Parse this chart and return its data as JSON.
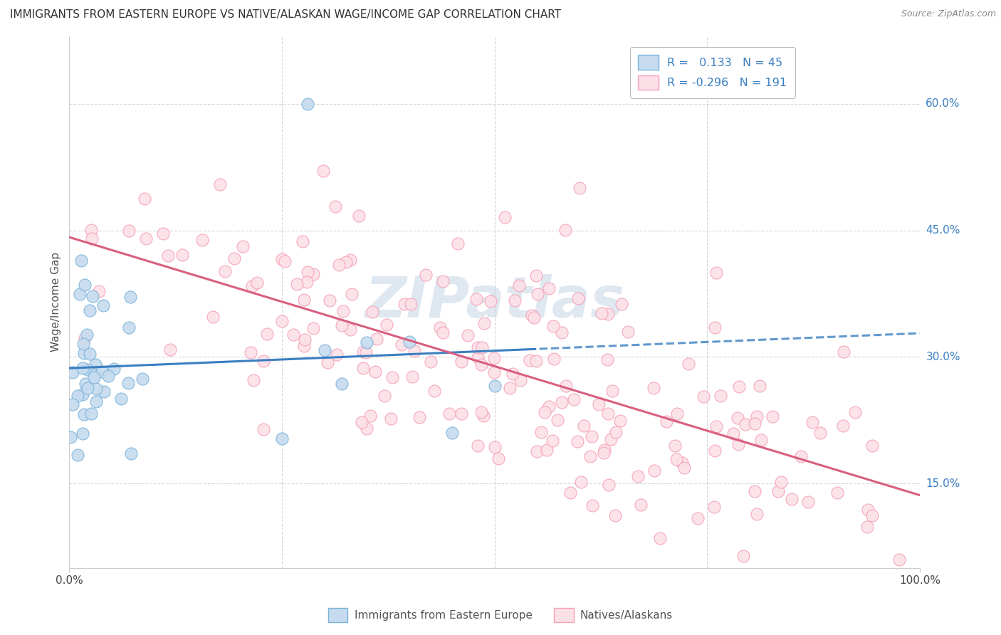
{
  "title": "IMMIGRANTS FROM EASTERN EUROPE VS NATIVE/ALASKAN WAGE/INCOME GAP CORRELATION CHART",
  "source": "Source: ZipAtlas.com",
  "ylabel": "Wage/Income Gap",
  "y_ticks": [
    "15.0%",
    "30.0%",
    "45.0%",
    "60.0%"
  ],
  "y_tick_vals": [
    0.15,
    0.3,
    0.45,
    0.6
  ],
  "watermark": "ZIPatlas",
  "blue_color": "#7ab3d9",
  "blue_fill": "#c6dbef",
  "pink_color": "#f4a0b5",
  "pink_fill": "#fce0e8",
  "line_blue": "#3a7fc1",
  "line_pink": "#d95f7f",
  "xlim": [
    0.0,
    1.0
  ],
  "ylim": [
    0.05,
    0.68
  ],
  "background_color": "#ffffff",
  "grid_color": "#cccccc",
  "blue_seed": 77,
  "pink_seed": 42,
  "legend_label1": "R =   0.133   N = 45",
  "legend_label2": "R = -0.296   N = 191",
  "bottom_label1": "Immigrants from Eastern Europe",
  "bottom_label2": "Natives/Alaskans"
}
